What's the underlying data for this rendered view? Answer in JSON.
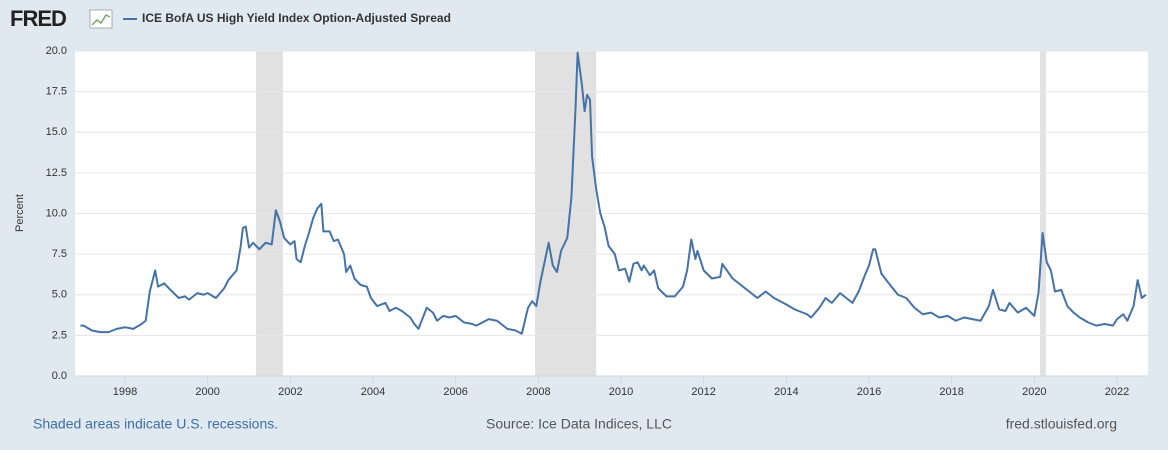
{
  "chart_data": {
    "type": "line",
    "logo": "FRED",
    "series": [
      {
        "name": "ICE BofA US High Yield Index Option-Adjusted Spread",
        "color": "#4572a7",
        "x": [
          1996.92,
          1997.0,
          1997.2,
          1997.4,
          1997.6,
          1997.8,
          1998.0,
          1998.2,
          1998.4,
          1998.5,
          1998.6,
          1998.73,
          1998.8,
          1998.95,
          1999.1,
          1999.3,
          1999.45,
          1999.55,
          1999.75,
          1999.9,
          2000.0,
          2000.2,
          2000.4,
          2000.5,
          2000.6,
          2000.7,
          2000.8,
          2000.85,
          2000.92,
          2001.0,
          2001.1,
          2001.25,
          2001.4,
          2001.55,
          2001.65,
          2001.75,
          2001.85,
          2002.0,
          2002.1,
          2002.15,
          2002.25,
          2002.35,
          2002.45,
          2002.55,
          2002.65,
          2002.75,
          2002.8,
          2002.95,
          2003.05,
          2003.15,
          2003.3,
          2003.35,
          2003.45,
          2003.55,
          2003.7,
          2003.85,
          2003.95,
          2004.1,
          2004.3,
          2004.4,
          2004.55,
          2004.7,
          2004.9,
          2005.0,
          2005.1,
          2005.3,
          2005.45,
          2005.55,
          2005.7,
          2005.85,
          2006.0,
          2006.2,
          2006.4,
          2006.5,
          2006.8,
          2007.0,
          2007.25,
          2007.45,
          2007.6,
          2007.75,
          2007.85,
          2007.95,
          2008.05,
          2008.15,
          2008.25,
          2008.35,
          2008.45,
          2008.55,
          2008.7,
          2008.8,
          2008.9,
          2008.95,
          2009.05,
          2009.12,
          2009.18,
          2009.25,
          2009.3,
          2009.4,
          2009.5,
          2009.6,
          2009.7,
          2009.85,
          2009.95,
          2010.1,
          2010.2,
          2010.3,
          2010.4,
          2010.5,
          2010.55,
          2010.7,
          2010.8,
          2010.9,
          2011.1,
          2011.3,
          2011.5,
          2011.6,
          2011.7,
          2011.8,
          2011.85,
          2012.0,
          2012.2,
          2012.4,
          2012.45,
          2012.7,
          2012.9,
          2013.1,
          2013.3,
          2013.5,
          2013.7,
          2014.0,
          2014.2,
          2014.5,
          2014.6,
          2014.8,
          2014.95,
          2015.1,
          2015.3,
          2015.5,
          2015.6,
          2015.75,
          2015.9,
          2016.0,
          2016.1,
          2016.15,
          2016.3,
          2016.45,
          2016.7,
          2016.9,
          2017.1,
          2017.3,
          2017.5,
          2017.7,
          2017.9,
          2018.1,
          2018.3,
          2018.5,
          2018.7,
          2018.9,
          2019.0,
          2019.15,
          2019.3,
          2019.4,
          2019.6,
          2019.8,
          2020.0,
          2020.1,
          2020.2,
          2020.3,
          2020.4,
          2020.5,
          2020.65,
          2020.8,
          2020.95,
          2021.1,
          2021.3,
          2021.5,
          2021.7,
          2021.9,
          2022.0,
          2022.15,
          2022.25,
          2022.4,
          2022.5,
          2022.6,
          2022.7
        ],
        "values": [
          3.1,
          3.1,
          2.8,
          2.7,
          2.7,
          2.9,
          3.0,
          2.9,
          3.2,
          3.4,
          5.2,
          6.5,
          5.5,
          5.7,
          5.3,
          4.8,
          4.9,
          4.7,
          5.1,
          5.0,
          5.1,
          4.8,
          5.4,
          5.9,
          6.2,
          6.5,
          8.0,
          9.1,
          9.2,
          7.9,
          8.2,
          7.8,
          8.2,
          8.1,
          10.2,
          9.5,
          8.5,
          8.1,
          8.3,
          7.2,
          7.0,
          8.0,
          8.8,
          9.7,
          10.3,
          10.6,
          8.9,
          8.9,
          8.3,
          8.4,
          7.5,
          6.4,
          6.8,
          6.0,
          5.6,
          5.5,
          4.8,
          4.3,
          4.5,
          4.0,
          4.2,
          4.0,
          3.6,
          3.2,
          2.9,
          4.2,
          3.9,
          3.4,
          3.7,
          3.6,
          3.7,
          3.3,
          3.2,
          3.1,
          3.5,
          3.4,
          2.9,
          2.8,
          2.6,
          4.2,
          4.6,
          4.3,
          5.8,
          7.0,
          8.2,
          6.8,
          6.4,
          7.7,
          8.5,
          11.0,
          16.5,
          19.9,
          18.0,
          16.3,
          17.3,
          17.0,
          13.5,
          11.5,
          10.0,
          9.2,
          8.0,
          7.5,
          6.5,
          6.6,
          5.8,
          6.9,
          7.0,
          6.5,
          6.8,
          6.2,
          6.5,
          5.4,
          4.9,
          4.9,
          5.5,
          6.5,
          8.4,
          7.2,
          7.7,
          6.5,
          6.0,
          6.1,
          6.9,
          6.0,
          5.6,
          5.2,
          4.8,
          5.2,
          4.8,
          4.4,
          4.1,
          3.8,
          3.6,
          4.2,
          4.8,
          4.5,
          5.1,
          4.7,
          4.5,
          5.2,
          6.2,
          6.8,
          7.8,
          7.8,
          6.3,
          5.8,
          5.0,
          4.8,
          4.2,
          3.8,
          3.9,
          3.6,
          3.7,
          3.4,
          3.6,
          3.5,
          3.4,
          4.3,
          5.3,
          4.1,
          4.0,
          4.5,
          3.9,
          4.2,
          3.7,
          5.1,
          8.8,
          7.0,
          6.5,
          5.2,
          5.3,
          4.3,
          3.9,
          3.6,
          3.3,
          3.1,
          3.2,
          3.1,
          3.5,
          3.8,
          3.4,
          4.3,
          5.9,
          4.8,
          5.0
        ]
      }
    ],
    "recessions": [
      [
        2001.17,
        2001.82
      ],
      [
        2007.92,
        2009.4
      ],
      [
        2020.14,
        2020.28
      ]
    ],
    "recession_color": "#e1e1e1",
    "ylabel": "Percent",
    "xlim": [
      1996.79,
      2022.75
    ],
    "xticks": [
      1998,
      2000,
      2002,
      2004,
      2006,
      2008,
      2010,
      2012,
      2014,
      2016,
      2018,
      2020,
      2022
    ],
    "ylim": [
      0,
      20
    ],
    "yticks": [
      {
        "value": 0,
        "label": "0.0"
      },
      {
        "value": 2.5,
        "label": "2.5"
      },
      {
        "value": 5,
        "label": "5.0"
      },
      {
        "value": 7.5,
        "label": "7.5"
      },
      {
        "value": 10,
        "label": "10.0"
      },
      {
        "value": 12.5,
        "label": "12.5"
      },
      {
        "value": 15,
        "label": "15.0"
      },
      {
        "value": 17.5,
        "label": "17.5"
      },
      {
        "value": 20,
        "label": "20.0"
      }
    ],
    "grid": true,
    "footer_left": "Shaded areas indicate U.S. recessions.",
    "footer_center": "Source: Ice Data Indices, LLC",
    "footer_right": "fred.stlouisfed.org"
  }
}
